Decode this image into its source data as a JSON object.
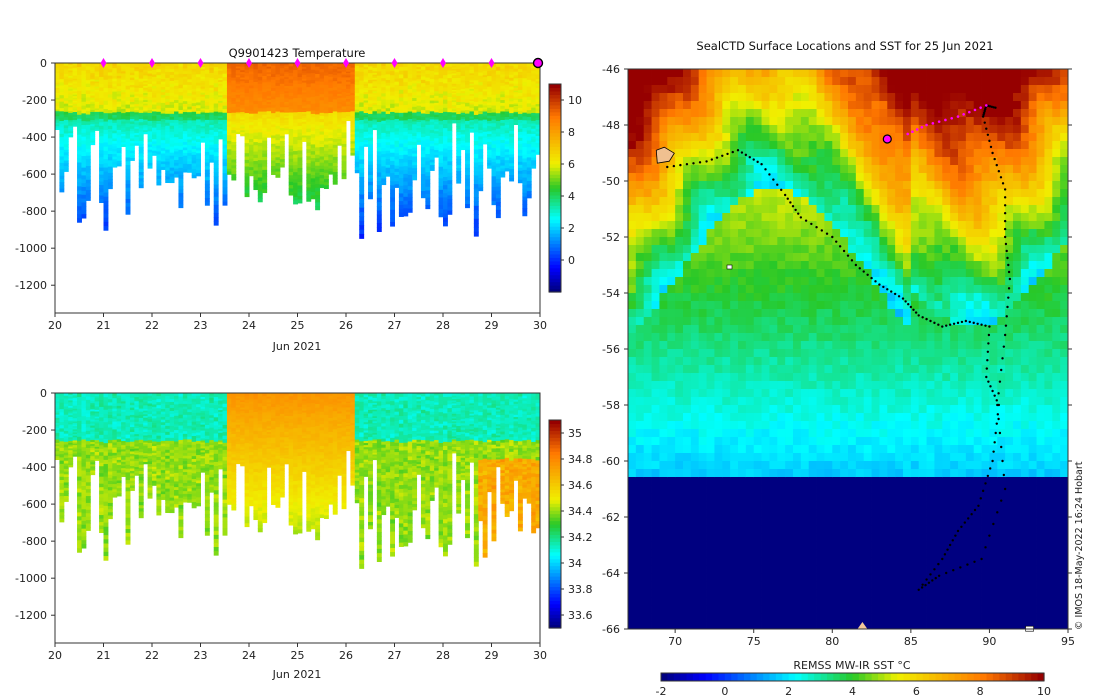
{
  "chart_data": [
    {
      "type": "heatmap",
      "title": "Q9901423  Temperature",
      "xlabel": "Jun 2021",
      "ylabel": "",
      "x_ticks": [
        "20",
        "21",
        "22",
        "23",
        "24",
        "25",
        "26",
        "27",
        "28",
        "29",
        "30"
      ],
      "y_ticks": [
        "0",
        "-200",
        "-400",
        "-600",
        "-800",
        "-1000",
        "-1200"
      ],
      "xlim": [
        20,
        30
      ],
      "ylim": [
        -1350,
        0
      ],
      "colorbar_ticks": [
        "0",
        "2",
        "4",
        "6",
        "8",
        "10"
      ],
      "colorbar_range": [
        -2,
        11
      ],
      "profile_markers_day": [
        21,
        22,
        23,
        24,
        25,
        26,
        27,
        28,
        29
      ],
      "current_marker_day": 30,
      "marker_color": "#ff00ff"
    },
    {
      "type": "heatmap",
      "title": "",
      "xlabel": "Jun 2021",
      "ylabel": "",
      "x_ticks": [
        "20",
        "21",
        "22",
        "23",
        "24",
        "25",
        "26",
        "27",
        "28",
        "29",
        "30"
      ],
      "y_ticks": [
        "0",
        "-200",
        "-400",
        "-600",
        "-800",
        "-1000",
        "-1200"
      ],
      "xlim": [
        20,
        30
      ],
      "ylim": [
        -1350,
        0
      ],
      "colorbar_ticks": [
        "33.6",
        "33.8",
        "34",
        "34.2",
        "34.4",
        "34.6",
        "34.8",
        "35"
      ],
      "colorbar_range": [
        33.5,
        35.1
      ]
    },
    {
      "type": "heatmap",
      "title": "SealCTD Surface Locations and SST for 25 Jun 2021",
      "xlabel": "",
      "ylabel": "",
      "x_ticks": [
        "70",
        "75",
        "80",
        "85",
        "90",
        "95"
      ],
      "y_ticks": [
        "-46",
        "-48",
        "-50",
        "-52",
        "-54",
        "-56",
        "-58",
        "-60",
        "-62",
        "-64",
        "-66"
      ],
      "xlim": [
        67,
        95
      ],
      "ylim": [
        -66,
        -46
      ],
      "colorbar_label": "REMSS MW-IR SST °C",
      "colorbar_ticks": [
        "-2",
        "0",
        "2",
        "4",
        "6",
        "8",
        "10"
      ],
      "colorbar_range": [
        -2,
        10
      ],
      "track_color": "#000000",
      "recent_track_color": "#ff00ff",
      "current_position": {
        "lon": 83.5,
        "lat": -48.5
      }
    }
  ],
  "credit": "© IMOS 18-May-2022 16:24 Hobart"
}
